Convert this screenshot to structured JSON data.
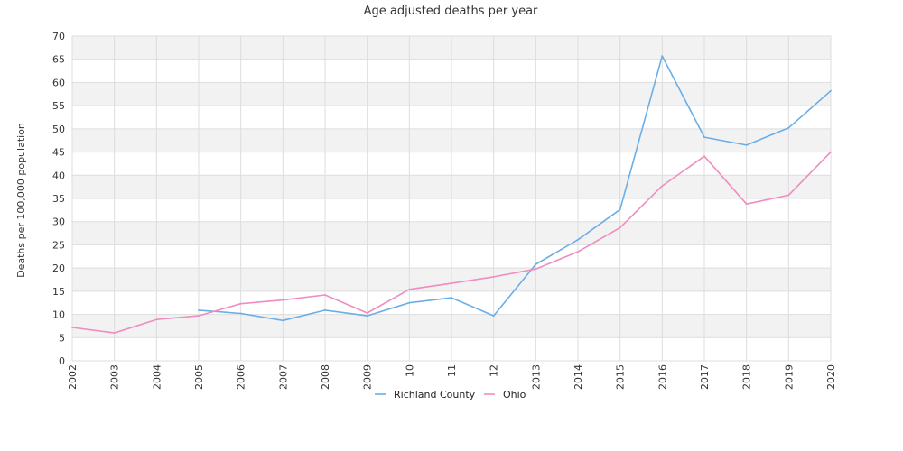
{
  "chart_data": {
    "type": "line",
    "title": "Age adjusted deaths per year",
    "xlabel": "",
    "ylabel": "Deaths per 100,000 population",
    "categories": [
      "2002",
      "2003",
      "2004",
      "2005",
      "2006",
      "2007",
      "2008",
      "2009",
      "2010",
      "2011",
      "2012",
      "2013",
      "2014",
      "2015",
      "2016",
      "2017",
      "2018",
      "2019",
      "2020"
    ],
    "x_tick_labels": [
      "2002",
      "2003",
      "2004",
      "2005",
      "2006",
      "2007",
      "2008",
      "2009",
      "10",
      "11",
      "12",
      "2013",
      "2014",
      "2015",
      "2016",
      "2017",
      "2018",
      "2019",
      "2020"
    ],
    "ylim": [
      0,
      70
    ],
    "yticks": [
      0,
      5,
      10,
      15,
      20,
      25,
      30,
      35,
      40,
      45,
      50,
      55,
      60,
      65,
      70
    ],
    "grid": true,
    "legend_position": "bottom",
    "series": [
      {
        "name": "Richland County",
        "color": "#6aaee8",
        "values": [
          null,
          null,
          null,
          10.9,
          10.2,
          8.7,
          10.9,
          9.7,
          12.5,
          13.6,
          9.7,
          20.8,
          26.1,
          32.6,
          65.7,
          48.2,
          46.5,
          50.2,
          58.2
        ]
      },
      {
        "name": "Ohio",
        "color": "#ef8cc0",
        "values": [
          7.2,
          6.0,
          8.9,
          9.7,
          12.3,
          13.1,
          14.2,
          10.3,
          15.4,
          16.7,
          18.1,
          19.8,
          23.5,
          28.7,
          37.7,
          44.1,
          33.8,
          35.7,
          45.0
        ]
      }
    ],
    "band_colors": [
      "#f2f2f2",
      "#ffffff"
    ],
    "grid_color": "#dddddd"
  }
}
